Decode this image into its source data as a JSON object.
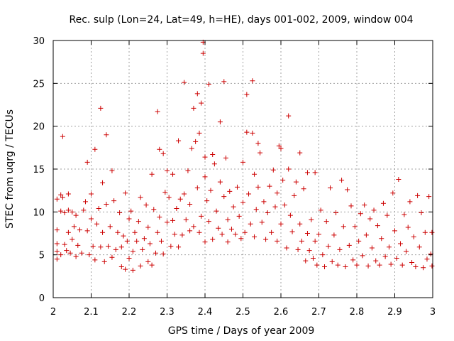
{
  "chart_data": {
    "type": "scatter",
    "title": "Rec. sulp (Lon=24, Lat=49, h=HE), days 001-002, 2009, window 004",
    "xlabel": "GPS time / Days of year 2009",
    "ylabel": "STEC from uqrg / TECUs",
    "xlim": [
      2,
      3
    ],
    "ylim": [
      0,
      30
    ],
    "xticks": [
      2,
      2.1,
      2.2,
      2.3,
      2.4,
      2.5,
      2.6,
      2.7,
      2.8,
      2.9,
      3
    ],
    "xtick_labels": [
      "2",
      "2.1",
      "2.2",
      "2.3",
      "2.4",
      "2.5",
      "2.6",
      "2.7",
      "2.8",
      "2.9",
      "3"
    ],
    "yticks": [
      0,
      5,
      10,
      15,
      20,
      25,
      30
    ],
    "ytick_labels": [
      "0",
      "5",
      "10",
      "15",
      "20",
      "25",
      "30"
    ],
    "grid": true,
    "marker": "+",
    "color": "#cc0000",
    "series": [
      {
        "name": "STEC",
        "points": [
          [
            2.01,
            4.5
          ],
          [
            2.01,
            5.4
          ],
          [
            2.01,
            6.3
          ],
          [
            2.01,
            7.9
          ],
          [
            2.01,
            11.5
          ],
          [
            2.02,
            12.0
          ],
          [
            2.02,
            10.1
          ],
          [
            2.02,
            5.0
          ],
          [
            2.025,
            18.8
          ],
          [
            2.025,
            11.7
          ],
          [
            2.03,
            6.2
          ],
          [
            2.03,
            9.9
          ],
          [
            2.035,
            5.5
          ],
          [
            2.04,
            7.6
          ],
          [
            2.04,
            10.2
          ],
          [
            2.04,
            12.1
          ],
          [
            2.045,
            5.2
          ],
          [
            2.05,
            10.0
          ],
          [
            2.05,
            6.8
          ],
          [
            2.055,
            8.3
          ],
          [
            2.06,
            4.8
          ],
          [
            2.06,
            9.6
          ],
          [
            2.065,
            6.1
          ],
          [
            2.07,
            7.9
          ],
          [
            2.075,
            5.2
          ],
          [
            2.08,
            10.2
          ],
          [
            2.085,
            11.2
          ],
          [
            2.09,
            15.8
          ],
          [
            2.09,
            7.8
          ],
          [
            2.095,
            5.0
          ],
          [
            2.1,
            12.1
          ],
          [
            2.1,
            9.2
          ],
          [
            2.105,
            6.0
          ],
          [
            2.11,
            17.3
          ],
          [
            2.11,
            4.4
          ],
          [
            2.115,
            8.6
          ],
          [
            2.12,
            10.4
          ],
          [
            2.125,
            22.1
          ],
          [
            2.125,
            5.9
          ],
          [
            2.13,
            13.4
          ],
          [
            2.13,
            7.6
          ],
          [
            2.135,
            4.2
          ],
          [
            2.14,
            19.0
          ],
          [
            2.14,
            10.9
          ],
          [
            2.145,
            6.0
          ],
          [
            2.15,
            8.3
          ],
          [
            2.155,
            14.8
          ],
          [
            2.155,
            4.7
          ],
          [
            2.16,
            11.3
          ],
          [
            2.165,
            5.6
          ],
          [
            2.17,
            7.6
          ],
          [
            2.175,
            9.9
          ],
          [
            2.18,
            3.6
          ],
          [
            2.18,
            5.9
          ],
          [
            2.185,
            7.2
          ],
          [
            2.19,
            12.2
          ],
          [
            2.19,
            3.3
          ],
          [
            2.195,
            6.6
          ],
          [
            2.2,
            9.2
          ],
          [
            2.2,
            4.6
          ],
          [
            2.205,
            10.1
          ],
          [
            2.21,
            3.2
          ],
          [
            2.21,
            5.4
          ],
          [
            2.215,
            7.6
          ],
          [
            2.22,
            6.6
          ],
          [
            2.225,
            8.9
          ],
          [
            2.23,
            3.7
          ],
          [
            2.23,
            11.7
          ],
          [
            2.235,
            5.6
          ],
          [
            2.24,
            6.9
          ],
          [
            2.245,
            10.8
          ],
          [
            2.25,
            4.2
          ],
          [
            2.25,
            8.2
          ],
          [
            2.255,
            6.3
          ],
          [
            2.26,
            14.4
          ],
          [
            2.26,
            3.8
          ],
          [
            2.265,
            10.3
          ],
          [
            2.27,
            5.2
          ],
          [
            2.275,
            21.7
          ],
          [
            2.275,
            7.6
          ],
          [
            2.28,
            17.3
          ],
          [
            2.28,
            9.4
          ],
          [
            2.285,
            6.6
          ],
          [
            2.29,
            16.8
          ],
          [
            2.29,
            5.1
          ],
          [
            2.295,
            12.3
          ],
          [
            2.3,
            14.8
          ],
          [
            2.3,
            8.8
          ],
          [
            2.305,
            11.7
          ],
          [
            2.31,
            6.0
          ],
          [
            2.315,
            14.4
          ],
          [
            2.315,
            9.0
          ],
          [
            2.32,
            7.4
          ],
          [
            2.325,
            10.4
          ],
          [
            2.33,
            18.3
          ],
          [
            2.33,
            5.9
          ],
          [
            2.335,
            11.5
          ],
          [
            2.34,
            7.3
          ],
          [
            2.345,
            25.1
          ],
          [
            2.345,
            12.1
          ],
          [
            2.35,
            9.1
          ],
          [
            2.355,
            14.8
          ],
          [
            2.36,
            7.8
          ],
          [
            2.36,
            10.9
          ],
          [
            2.365,
            17.4
          ],
          [
            2.37,
            22.1
          ],
          [
            2.37,
            8.3
          ],
          [
            2.375,
            18.2
          ],
          [
            2.38,
            23.8
          ],
          [
            2.38,
            12.8
          ],
          [
            2.385,
            19.2
          ],
          [
            2.385,
            7.6
          ],
          [
            2.39,
            22.7
          ],
          [
            2.39,
            9.5
          ],
          [
            2.395,
            29.8
          ],
          [
            2.395,
            28.5
          ],
          [
            2.4,
            16.4
          ],
          [
            2.4,
            14.1
          ],
          [
            2.4,
            6.5
          ],
          [
            2.405,
            11.3
          ],
          [
            2.41,
            24.9
          ],
          [
            2.41,
            8.9
          ],
          [
            2.415,
            12.5
          ],
          [
            2.42,
            16.7
          ],
          [
            2.42,
            6.8
          ],
          [
            2.425,
            15.6
          ],
          [
            2.43,
            10.1
          ],
          [
            2.435,
            8.1
          ],
          [
            2.44,
            20.5
          ],
          [
            2.44,
            13.5
          ],
          [
            2.445,
            7.4
          ],
          [
            2.45,
            25.2
          ],
          [
            2.45,
            11.8
          ],
          [
            2.455,
            16.3
          ],
          [
            2.46,
            9.1
          ],
          [
            2.46,
            6.5
          ],
          [
            2.465,
            12.4
          ],
          [
            2.47,
            8.0
          ],
          [
            2.475,
            10.6
          ],
          [
            2.48,
            7.4
          ],
          [
            2.485,
            12.9
          ],
          [
            2.49,
            9.5
          ],
          [
            2.495,
            6.9
          ],
          [
            2.5,
            15.8
          ],
          [
            2.5,
            11.1
          ],
          [
            2.505,
            7.6
          ],
          [
            2.51,
            23.7
          ],
          [
            2.51,
            19.3
          ],
          [
            2.515,
            12.1
          ],
          [
            2.52,
            8.6
          ],
          [
            2.525,
            25.3
          ],
          [
            2.525,
            19.2
          ],
          [
            2.53,
            14.4
          ],
          [
            2.53,
            7.1
          ],
          [
            2.535,
            10.3
          ],
          [
            2.54,
            18.0
          ],
          [
            2.54,
            12.9
          ],
          [
            2.545,
            16.9
          ],
          [
            2.55,
            8.8
          ],
          [
            2.555,
            11.2
          ],
          [
            2.56,
            6.8
          ],
          [
            2.565,
            9.9
          ],
          [
            2.57,
            13.0
          ],
          [
            2.575,
            7.6
          ],
          [
            2.58,
            14.9
          ],
          [
            2.585,
            10.6
          ],
          [
            2.59,
            12.2
          ],
          [
            2.59,
            6.6
          ],
          [
            2.595,
            17.7
          ],
          [
            2.6,
            17.4
          ],
          [
            2.6,
            8.6
          ],
          [
            2.605,
            13.7
          ],
          [
            2.61,
            10.8
          ],
          [
            2.615,
            5.8
          ],
          [
            2.62,
            21.2
          ],
          [
            2.62,
            15.0
          ],
          [
            2.625,
            9.6
          ],
          [
            2.63,
            7.7
          ],
          [
            2.635,
            11.9
          ],
          [
            2.64,
            13.5
          ],
          [
            2.645,
            5.6
          ],
          [
            2.65,
            16.9
          ],
          [
            2.65,
            8.6
          ],
          [
            2.655,
            6.6
          ],
          [
            2.66,
            12.7
          ],
          [
            2.665,
            4.3
          ],
          [
            2.67,
            14.6
          ],
          [
            2.67,
            7.5
          ],
          [
            2.675,
            5.5
          ],
          [
            2.68,
            9.1
          ],
          [
            2.685,
            4.6
          ],
          [
            2.69,
            6.6
          ],
          [
            2.69,
            14.6
          ],
          [
            2.695,
            3.8
          ],
          [
            2.7,
            7.4
          ],
          [
            2.705,
            10.2
          ],
          [
            2.71,
            5.0
          ],
          [
            2.715,
            3.6
          ],
          [
            2.72,
            8.9
          ],
          [
            2.725,
            6.0
          ],
          [
            2.73,
            12.8
          ],
          [
            2.735,
            4.2
          ],
          [
            2.74,
            7.3
          ],
          [
            2.745,
            9.9
          ],
          [
            2.75,
            3.8
          ],
          [
            2.755,
            5.6
          ],
          [
            2.76,
            13.7
          ],
          [
            2.765,
            8.3
          ],
          [
            2.77,
            3.6
          ],
          [
            2.775,
            12.6
          ],
          [
            2.78,
            6.1
          ],
          [
            2.785,
            10.7
          ],
          [
            2.79,
            4.4
          ],
          [
            2.795,
            8.3
          ],
          [
            2.8,
            3.8
          ],
          [
            2.805,
            6.6
          ],
          [
            2.81,
            9.8
          ],
          [
            2.815,
            4.9
          ],
          [
            2.82,
            10.8
          ],
          [
            2.825,
            7.3
          ],
          [
            2.83,
            3.7
          ],
          [
            2.835,
            9.2
          ],
          [
            2.84,
            5.8
          ],
          [
            2.845,
            10.2
          ],
          [
            2.85,
            4.3
          ],
          [
            2.855,
            8.4
          ],
          [
            2.86,
            3.8
          ],
          [
            2.865,
            6.9
          ],
          [
            2.87,
            11.0
          ],
          [
            2.875,
            4.8
          ],
          [
            2.88,
            9.6
          ],
          [
            2.885,
            5.9
          ],
          [
            2.89,
            3.9
          ],
          [
            2.895,
            12.2
          ],
          [
            2.9,
            7.8
          ],
          [
            2.905,
            4.6
          ],
          [
            2.91,
            13.8
          ],
          [
            2.915,
            6.3
          ],
          [
            2.92,
            3.8
          ],
          [
            2.925,
            9.7
          ],
          [
            2.93,
            5.4
          ],
          [
            2.935,
            8.2
          ],
          [
            2.94,
            11.2
          ],
          [
            2.945,
            4.1
          ],
          [
            2.95,
            7.1
          ],
          [
            2.955,
            3.6
          ],
          [
            2.96,
            11.9
          ],
          [
            2.965,
            5.9
          ],
          [
            2.97,
            9.9
          ],
          [
            2.975,
            3.5
          ],
          [
            2.98,
            7.6
          ],
          [
            2.985,
            4.5
          ],
          [
            2.99,
            11.8
          ],
          [
            2.995,
            5.1
          ],
          [
            2.998,
            7.6
          ],
          [
            2.998,
            3.7
          ]
        ]
      }
    ]
  }
}
